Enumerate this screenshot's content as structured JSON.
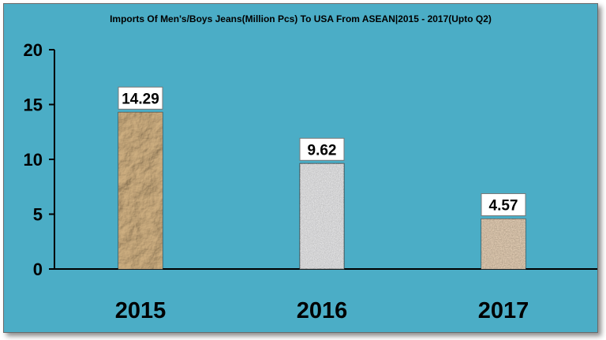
{
  "chart_data": {
    "type": "bar",
    "title": "Imports Of Men's/Boys Jeans(Million Pcs) To USA From ASEAN|2015 - 2017(Upto Q2)",
    "categories": [
      "2015",
      "2016",
      "2017"
    ],
    "values": [
      14.29,
      9.62,
      4.57
    ],
    "data_labels": [
      "14.29",
      "9.62",
      "4.57"
    ],
    "ylim": [
      0,
      20
    ],
    "yticks": [
      0,
      5,
      10,
      15,
      20
    ],
    "grid": false,
    "legend": "none",
    "colors": {
      "background": "#4badc6",
      "bar_2015": "#a98a5c",
      "bar_2016": "#c9c9c9",
      "bar_2017": "#a8937a",
      "label_box": "#ffffff"
    }
  }
}
